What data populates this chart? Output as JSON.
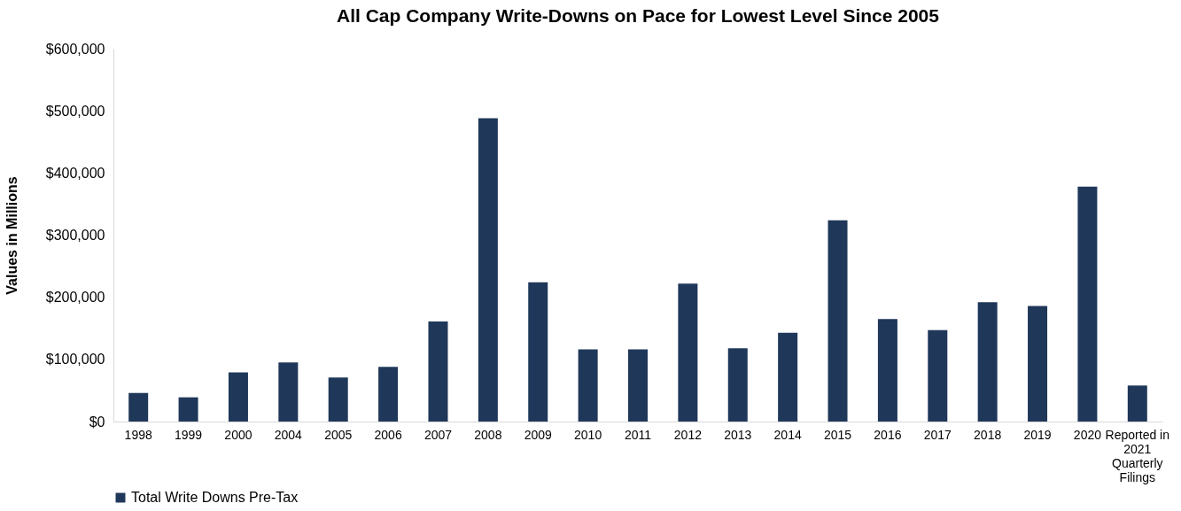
{
  "chart_data": {
    "type": "bar",
    "title": "All Cap Company Write-Downs on Pace for Lowest Level Since 2005",
    "ylabel": "Values in Millions",
    "categories": [
      "1998",
      "1999",
      "2000",
      "2004",
      "2005",
      "2006",
      "2007",
      "2008",
      "2009",
      "2010",
      "2011",
      "2012",
      "2013",
      "2014",
      "2015",
      "2016",
      "2017",
      "2018",
      "2019",
      "2020",
      "Reported in\n2021\nQuarterly\nFilings"
    ],
    "series": [
      {
        "name": "Total Write Downs Pre-Tax",
        "color": "#1f3759",
        "values": [
          46000,
          39000,
          79000,
          95000,
          71000,
          88000,
          161000,
          488000,
          224000,
          116000,
          116000,
          222000,
          118000,
          143000,
          324000,
          165000,
          147000,
          192000,
          186000,
          378000,
          58000
        ]
      }
    ],
    "ylim": [
      0,
      600000
    ],
    "yticks": [
      {
        "value": 0,
        "label": "$0"
      },
      {
        "value": 100000,
        "label": "$100,000"
      },
      {
        "value": 200000,
        "label": "$200,000"
      },
      {
        "value": 300000,
        "label": "$300,000"
      },
      {
        "value": 400000,
        "label": "$400,000"
      },
      {
        "value": 500000,
        "label": "$500,000"
      },
      {
        "value": 600000,
        "label": "$600,000"
      }
    ],
    "grid": false,
    "legend": "bottom"
  }
}
